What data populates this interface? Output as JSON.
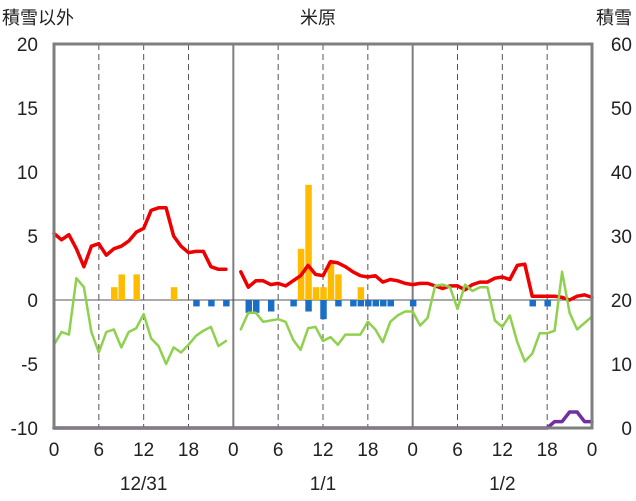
{
  "chart_data": {
    "type": "bar",
    "title": "米原",
    "ylabel_left": "積雪以外",
    "ylabel_right": "積雪",
    "ylim_left": [
      -10,
      20
    ],
    "ylim_right": [
      0,
      60
    ],
    "yticks_left": [
      "20",
      "15",
      "10",
      "5",
      "0",
      "-5",
      "-10"
    ],
    "yticks_right": [
      "60",
      "50",
      "40",
      "30",
      "20",
      "10",
      "0"
    ],
    "xticks": [
      "0",
      "6",
      "12",
      "18",
      "0",
      "6",
      "12",
      "18",
      "0",
      "6",
      "12",
      "18",
      "0"
    ],
    "date_labels": [
      "12/31",
      "1/1",
      "1/2"
    ],
    "x_range_hours": [
      0,
      72
    ],
    "grid": true,
    "colors": {
      "temperature": "#ee0000",
      "precip": "#ffbb00",
      "snow_change": "#1a6fc4",
      "green_line": "#8fd14f",
      "snow_depth": "#7030a0",
      "frame": "#7f7f7f",
      "grid": "#555555"
    },
    "series": [
      {
        "kind": "line",
        "axis": "left",
        "color_key": "temperature",
        "x": [
          0,
          1,
          2,
          3,
          4,
          5,
          6,
          7,
          8,
          9,
          10,
          11,
          12,
          13,
          14,
          15,
          16,
          17,
          18,
          19,
          20,
          21,
          22,
          23,
          24,
          25,
          26,
          27,
          28,
          29,
          30,
          31,
          32,
          33,
          34,
          35,
          36,
          37,
          38,
          39,
          40,
          41,
          42,
          43,
          44,
          45,
          46,
          47,
          48,
          49,
          50,
          51,
          52,
          53,
          54,
          55,
          56,
          57,
          58,
          59,
          60,
          61,
          62,
          63,
          64,
          65,
          66,
          67,
          68,
          69,
          70,
          71,
          72
        ],
        "values": [
          5.2,
          4.7,
          5.1,
          4.0,
          2.6,
          4.2,
          4.4,
          3.5,
          4.0,
          4.2,
          4.6,
          5.3,
          5.6,
          7.0,
          7.2,
          7.2,
          5.0,
          4.2,
          3.7,
          3.8,
          3.8,
          2.6,
          2.4,
          2.4,
          null,
          2.2,
          1.0,
          1.5,
          1.5,
          1.2,
          1.3,
          1.1,
          1.5,
          1.9,
          2.7,
          2.0,
          1.9,
          3.0,
          2.9,
          2.6,
          2.2,
          1.9,
          1.8,
          1.9,
          1.4,
          1.6,
          1.5,
          1.3,
          1.2,
          1.3,
          1.3,
          1.1,
          0.9,
          1.1,
          1.1,
          0.8,
          1.2,
          1.4,
          1.4,
          1.7,
          1.8,
          1.6,
          2.7,
          2.8,
          0.3,
          0.3,
          0.3,
          0.3,
          0.2,
          0.0,
          0.3,
          0.4,
          0.2
        ]
      },
      {
        "kind": "line",
        "axis": "left",
        "color_key": "green_line",
        "x": [
          0,
          1,
          2,
          3,
          4,
          5,
          6,
          7,
          8,
          9,
          10,
          11,
          12,
          13,
          14,
          15,
          16,
          17,
          18,
          19,
          20,
          21,
          22,
          23,
          24,
          25,
          26,
          27,
          28,
          29,
          30,
          31,
          32,
          33,
          34,
          35,
          36,
          37,
          38,
          39,
          40,
          41,
          42,
          43,
          44,
          45,
          46,
          47,
          48,
          49,
          50,
          51,
          52,
          53,
          54,
          55,
          56,
          57,
          58,
          59,
          60,
          61,
          62,
          63,
          64,
          65,
          66,
          67,
          68,
          69,
          70,
          71,
          72
        ],
        "values": [
          -3.5,
          -2.5,
          -2.7,
          1.7,
          1.0,
          -2.5,
          -4.1,
          -2.5,
          -2.3,
          -3.7,
          -2.5,
          -2.2,
          -1.1,
          -3.0,
          -3.6,
          -5.0,
          -3.7,
          -4.1,
          -3.5,
          -2.8,
          -2.4,
          -2.1,
          -3.6,
          -3.2,
          null,
          -2.3,
          -1.0,
          -1.0,
          -1.7,
          -1.6,
          -1.5,
          -1.7,
          -3.1,
          -3.9,
          -2.2,
          -2.1,
          -3.2,
          -2.9,
          -3.5,
          -2.7,
          -2.7,
          -2.7,
          -1.7,
          -2.3,
          -3.3,
          -1.7,
          -1.2,
          -0.9,
          -0.9,
          -2.0,
          -1.4,
          1.1,
          1.2,
          1.0,
          -0.7,
          1.2,
          0.7,
          1.0,
          1.0,
          -1.6,
          -2.1,
          -1.2,
          -3.3,
          -4.8,
          -4.2,
          -2.6,
          -2.6,
          -2.4,
          2.2,
          -1.0,
          -2.3,
          -1.8,
          -1.3
        ]
      },
      {
        "kind": "bar",
        "axis": "left",
        "color_key": "precip",
        "x": [
          8,
          9,
          11,
          16,
          33,
          34,
          35,
          36,
          37,
          38,
          41
        ],
        "values": [
          1.0,
          2.0,
          2.0,
          1.0,
          4.0,
          9.0,
          1.0,
          1.0,
          3.0,
          2.0,
          1.0
        ]
      },
      {
        "kind": "bar",
        "axis": "left",
        "color_key": "snow_change",
        "x": [
          19,
          21,
          23,
          26,
          27,
          29,
          32,
          34,
          36,
          38,
          40,
          41,
          42,
          43,
          44,
          45,
          48,
          64,
          66
        ],
        "values": [
          -0.5,
          -0.5,
          -0.5,
          -1.0,
          -1.0,
          -0.9,
          -0.5,
          -0.9,
          -1.5,
          -0.5,
          -0.5,
          -0.5,
          -0.5,
          -0.5,
          -0.5,
          -0.5,
          -0.5,
          -0.5,
          -0.5
        ]
      },
      {
        "kind": "line",
        "axis": "right",
        "color_key": "snow_depth",
        "x": [
          0,
          66,
          67,
          68,
          69,
          70,
          71,
          72
        ],
        "values": [
          0,
          0,
          1,
          1,
          2.5,
          2.5,
          1,
          1
        ]
      }
    ]
  }
}
